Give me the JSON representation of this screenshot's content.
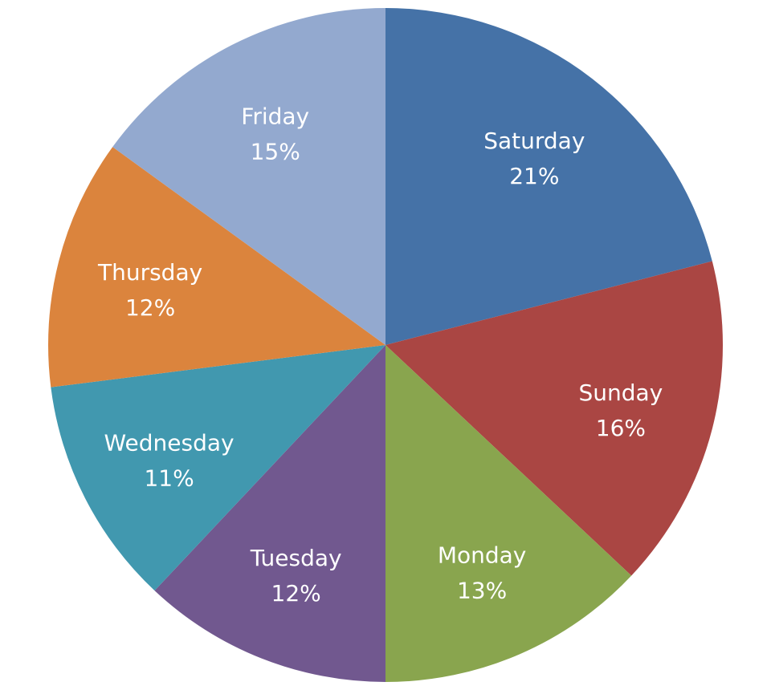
{
  "chart_data": {
    "type": "pie",
    "title": "",
    "start_angle_deg": 0,
    "direction": "clockwise",
    "slices": [
      {
        "label": "Saturday",
        "value": 21,
        "value_label": "21%",
        "color": "#4572A7"
      },
      {
        "label": "Sunday",
        "value": 16,
        "value_label": "16%",
        "color": "#AA4643"
      },
      {
        "label": "Monday",
        "value": 13,
        "value_label": "13%",
        "color": "#89A54E"
      },
      {
        "label": "Tuesday",
        "value": 12,
        "value_label": "12%",
        "color": "#71588F"
      },
      {
        "label": "Wednesday",
        "value": 11,
        "value_label": "11%",
        "color": "#4198AF"
      },
      {
        "label": "Thursday",
        "value": 12,
        "value_label": "12%",
        "color": "#DB843D"
      },
      {
        "label": "Friday",
        "value": 15,
        "value_label": "15%",
        "color": "#93A9CF"
      }
    ]
  }
}
